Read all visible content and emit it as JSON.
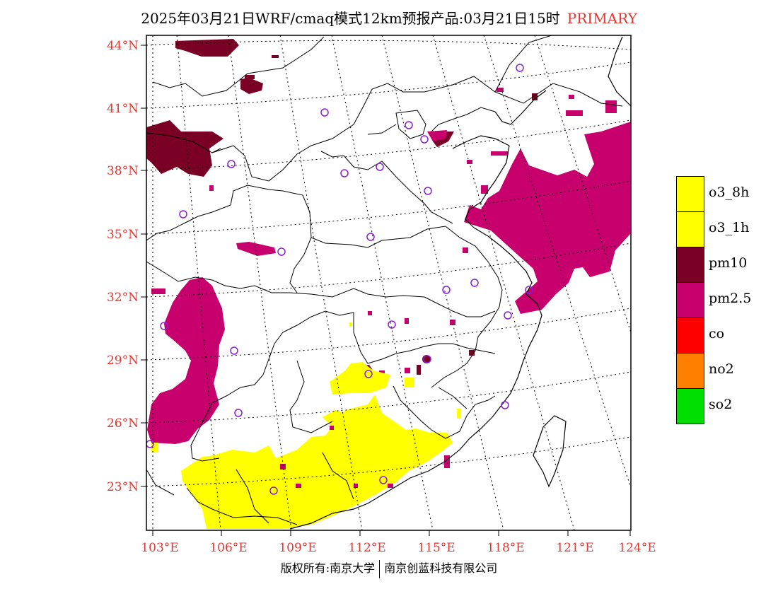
{
  "title": {
    "main": "2025年03月21日WRF/cmaq模式12km预报产品:03月21日15时",
    "tag": "PRIMARY"
  },
  "axes": {
    "lat_labels": [
      "44°N",
      "41°N",
      "38°N",
      "35°N",
      "32°N",
      "29°N",
      "26°N",
      "23°N"
    ],
    "lon_labels": [
      "103°E",
      "106°E",
      "109°E",
      "112°E",
      "115°E",
      "118°E",
      "121°E",
      "124°E"
    ]
  },
  "legend": [
    {
      "label": "o3_8h",
      "color": "#ffff00"
    },
    {
      "label": "o3_1h",
      "color": "#ffff00"
    },
    {
      "label": "pm10",
      "color": "#7a0026"
    },
    {
      "label": "pm2.5",
      "color": "#c8006e"
    },
    {
      "label": "co",
      "color": "#ff0000"
    },
    {
      "label": "no2",
      "color": "#ff7f00"
    },
    {
      "label": "so2",
      "color": "#00dd00"
    }
  ],
  "colors": {
    "axis_label": "#e8352f",
    "boundary": "#000000",
    "station_marker": "#8a1fd6"
  },
  "footer": {
    "left": "版权所有:南京大学",
    "right": "南京创蓝科技有限公司"
  }
}
